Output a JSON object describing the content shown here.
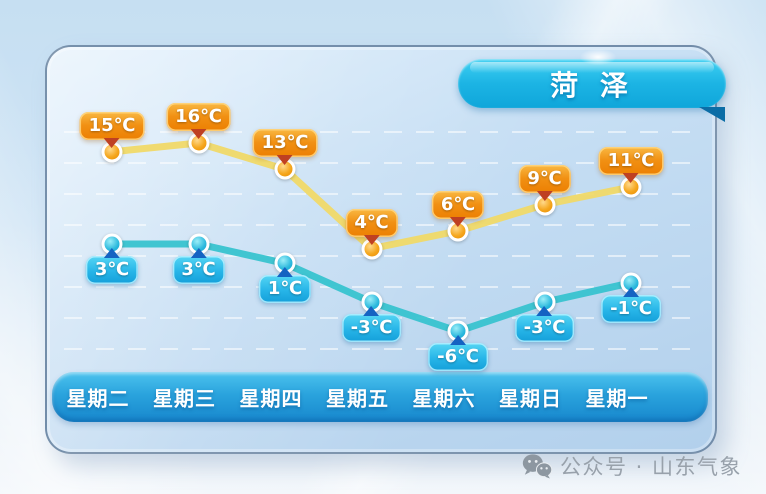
{
  "title": "菏 泽",
  "watermark": {
    "icon": "wechat-icon",
    "label": "公众号 · 山东气象"
  },
  "colors": {
    "high_badge": "#f19013",
    "high_pointer": "#bf4022",
    "high_line": "#f0d968",
    "low_badge": "#27b5e8",
    "low_pointer": "#1563c2",
    "low_line": "#38c3cf",
    "banner": "#1cb4e4",
    "weekday_bar": "#2aa3dd",
    "watermark_text": "#98a1ab"
  },
  "chart_data": {
    "type": "line",
    "title": "菏 泽",
    "categories": [
      "星期二",
      "星期三",
      "星期四",
      "星期五",
      "星期六",
      "星期日",
      "星期一"
    ],
    "series": [
      {
        "name": "high",
        "values": [
          15,
          16,
          13,
          4,
          6,
          9,
          11
        ],
        "labels": [
          "15℃",
          "16℃",
          "13℃",
          "4℃",
          "6℃",
          "9℃",
          "11℃"
        ],
        "line_color": "#f0d968"
      },
      {
        "name": "low",
        "values": [
          3,
          3,
          1,
          -3,
          -6,
          -3,
          -1
        ],
        "labels": [
          "3℃",
          "3℃",
          "1℃",
          "-3℃",
          "-6℃",
          "-3℃",
          "-1℃"
        ],
        "line_color": "#38c3cf"
      }
    ],
    "unit": "℃",
    "ylim": [
      -8,
      18
    ],
    "grid": "dashed-horizontal",
    "legend": "none"
  }
}
